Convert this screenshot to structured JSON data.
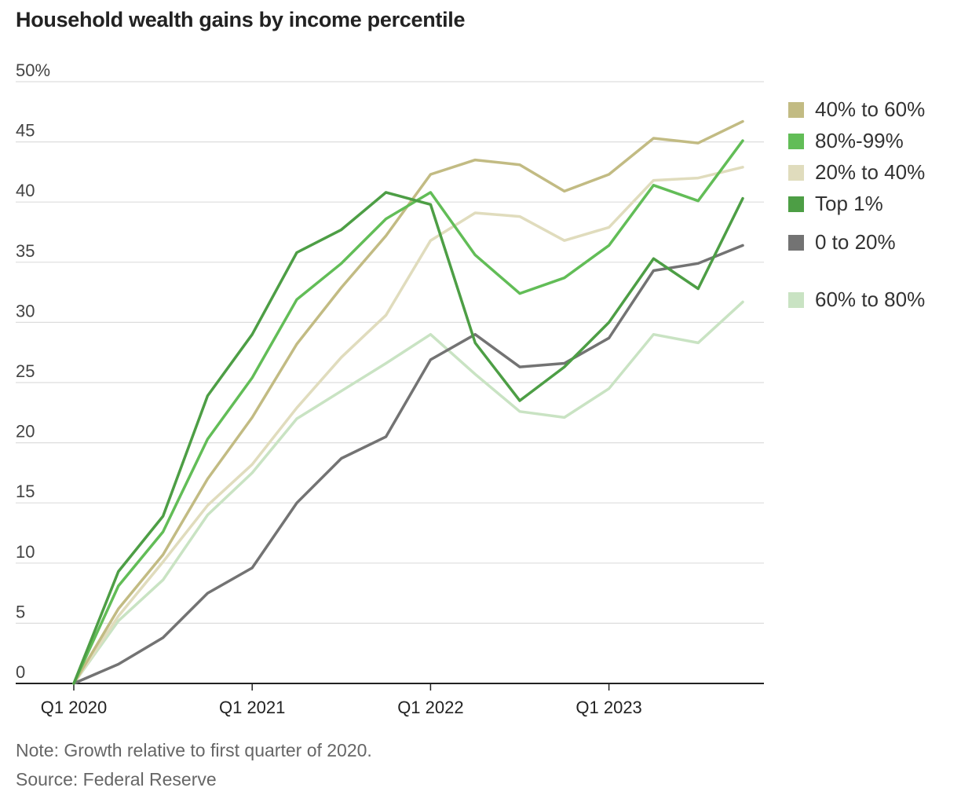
{
  "chart_data": {
    "type": "line",
    "title": "Household wealth gains by income percentile",
    "xlabel": "",
    "ylabel": "",
    "ylim": [
      0,
      50
    ],
    "y_ticks": [
      0,
      5,
      10,
      15,
      20,
      25,
      30,
      35,
      40,
      45,
      50
    ],
    "y_tick_labels": [
      "0",
      "5",
      "10",
      "15",
      "20",
      "25",
      "30",
      "35",
      "40",
      "45",
      "50%"
    ],
    "x_tick_labels": [
      "Q1 2020",
      "Q1 2021",
      "Q1 2022",
      "Q1 2023"
    ],
    "x_tick_indices": [
      0,
      4,
      8,
      12
    ],
    "n_points": 16,
    "grid": true,
    "legend_position": "right",
    "series": [
      {
        "name": "40% to 60%",
        "color": "#c2bb83",
        "values": [
          0,
          6.2,
          10.7,
          17.0,
          22.1,
          28.2,
          32.9,
          37.2,
          42.3,
          43.5,
          43.1,
          40.9,
          42.3,
          45.3,
          44.9,
          46.7
        ]
      },
      {
        "name": "80%-99%",
        "color": "#62bd57",
        "values": [
          0,
          8.1,
          12.6,
          20.3,
          25.4,
          31.9,
          34.9,
          38.6,
          40.8,
          35.6,
          32.4,
          33.7,
          36.4,
          41.4,
          40.1,
          45.1
        ]
      },
      {
        "name": "20% to 40%",
        "color": "#e0dcbd",
        "values": [
          0,
          5.6,
          10.1,
          14.8,
          18.2,
          22.9,
          27.1,
          30.6,
          36.8,
          39.1,
          38.8,
          36.8,
          37.9,
          41.8,
          42.0,
          42.9
        ]
      },
      {
        "name": "Top 1%",
        "color": "#4d9e45",
        "values": [
          0,
          9.3,
          13.9,
          23.9,
          29.0,
          35.8,
          37.7,
          40.8,
          39.8,
          28.3,
          23.5,
          26.3,
          30.0,
          35.3,
          32.8,
          40.3
        ]
      },
      {
        "name": "0 to 20%",
        "color": "#737373",
        "values": [
          0,
          1.6,
          3.8,
          7.5,
          9.6,
          15.0,
          18.7,
          20.5,
          26.9,
          29.0,
          26.3,
          26.6,
          28.7,
          34.3,
          34.9,
          36.4
        ]
      },
      {
        "name": "60% to 80%",
        "color": "#c9e3c3",
        "values": [
          0,
          5.2,
          8.6,
          14.0,
          17.5,
          22.0,
          24.3,
          26.6,
          29.0,
          25.7,
          22.6,
          22.1,
          24.5,
          29.0,
          28.3,
          31.7
        ]
      }
    ]
  },
  "legend": {
    "items": [
      {
        "label": "40% to 60%",
        "color": "#c2bb83"
      },
      {
        "label": "80%-99%",
        "color": "#62bd57"
      },
      {
        "label": "20% to 40%",
        "color": "#e0dcbd"
      },
      {
        "label": "Top 1%",
        "color": "#4d9e45"
      },
      {
        "label": "0 to 20%",
        "color": "#737373"
      },
      {
        "label": "60% to 80%",
        "color": "#c9e3c3"
      }
    ]
  },
  "footer": {
    "note": "Note: Growth relative to first quarter of 2020.",
    "source": "Source: Federal Reserve"
  }
}
